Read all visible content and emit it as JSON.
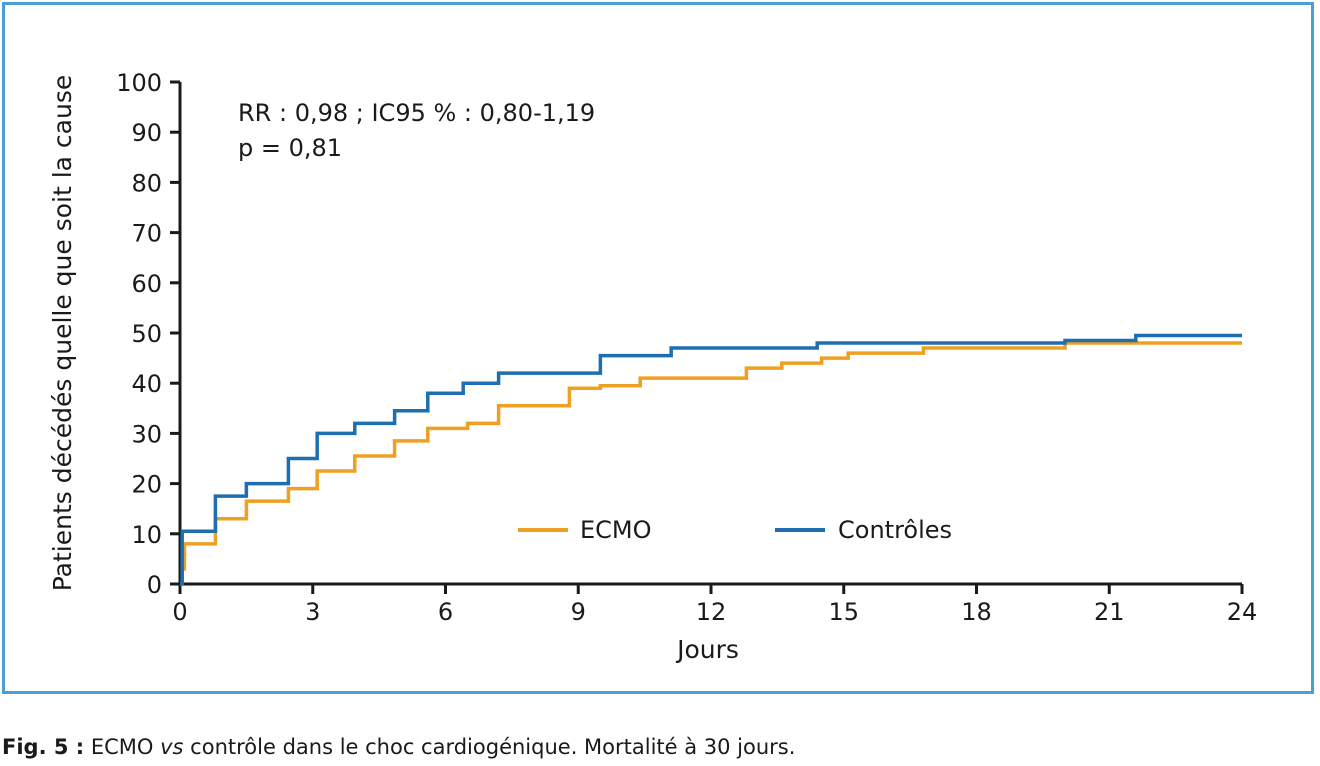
{
  "chart_data": {
    "type": "line",
    "step": true,
    "xlabel": "Jours",
    "ylabel": "Patients décédés quelle que soit la cause",
    "xlim": [
      0,
      24
    ],
    "ylim": [
      0,
      100
    ],
    "x_ticks": [
      0,
      3,
      6,
      9,
      12,
      15,
      18,
      21,
      24
    ],
    "y_ticks": [
      0,
      10,
      20,
      30,
      40,
      50,
      60,
      70,
      80,
      90,
      100
    ],
    "grid": false,
    "legend_position": "inside-center-right",
    "annotations": [
      "RR : 0,98 ; IC95 % : 0,80-1,19",
      "p = 0,81"
    ],
    "series": [
      {
        "name": "ECMO",
        "color": "#f0a020",
        "x": [
          0,
          0.05,
          0.1,
          0.8,
          1.5,
          2.45,
          3.1,
          3.95,
          4.85,
          5.6,
          6.5,
          7.2,
          8.8,
          9.5,
          10.4,
          12.8,
          13.6,
          14.5,
          15.1,
          16.8,
          20.0,
          24.0
        ],
        "y": [
          0,
          3,
          8,
          13,
          16.5,
          19,
          22.5,
          25.5,
          28.5,
          31,
          32,
          35.5,
          39,
          39.5,
          41,
          43,
          44,
          45,
          46,
          47,
          48,
          48
        ]
      },
      {
        "name": "Contrôles",
        "color": "#1f6fb0",
        "x": [
          0,
          0.05,
          0.8,
          1.5,
          2.45,
          3.1,
          3.95,
          4.85,
          5.6,
          6.4,
          7.2,
          9.5,
          11.1,
          14.4,
          20.0,
          21.6,
          24.0
        ],
        "y": [
          0,
          10.5,
          17.5,
          20,
          25,
          30,
          32,
          34.5,
          38,
          40,
          42,
          45.5,
          47,
          48,
          48.5,
          49.5,
          49.5
        ]
      }
    ]
  },
  "caption": {
    "prefix": "Fig. 5 :",
    "text_before": " ECMO ",
    "italic": "vs",
    "text_after": " contrôle dans le choc cardiogénique. Mortalité à 30 jours."
  }
}
